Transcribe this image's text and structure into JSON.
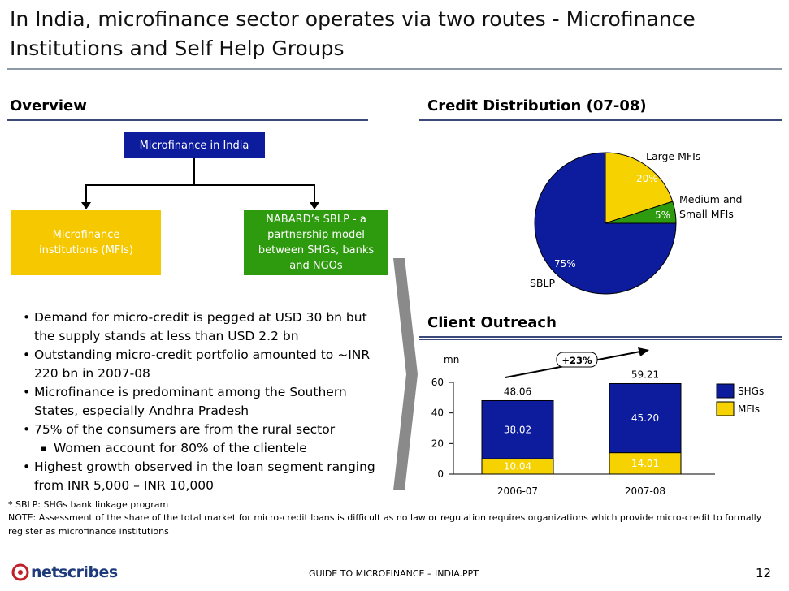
{
  "title": "In India, microfinance sector operates via two routes - Microfinance Institutions and Self Help Groups",
  "overview": {
    "heading": "Overview",
    "top_box": "Microfinance in India",
    "left_box": "Microfinance institutions (MFIs)",
    "right_box": "NABARD’s SBLP - a partnership model between SHGs, banks and NGOs",
    "bullets": [
      "Demand for micro-credit is pegged at USD 30 bn but the supply stands at less than USD 2.2 bn",
      "Outstanding micro-credit portfolio amounted to ~INR 220 bn in 2007-08",
      "Microfinance is predominant among the Southern States, especially Andhra Pradesh",
      "75% of the consumers are from the rural sector",
      "Women account for 80% of the clientele",
      "Highest growth observed in the loan segment ranging from INR 5,000 – INR 10,000"
    ],
    "bullet_marks": [
      "•",
      "▪"
    ]
  },
  "credit": {
    "heading": "Credit Distribution (07-08)"
  },
  "outreach": {
    "heading": "Client Outreach",
    "growth_label": "+23%"
  },
  "chart_data": [
    {
      "type": "pie",
      "title": "Credit Distribution (07-08)",
      "slices": [
        {
          "label": "SBLP",
          "value": 75,
          "display": "75%",
          "color": "#0c1c9c"
        },
        {
          "label": "Large MFIs",
          "value": 20,
          "display": "20%",
          "color": "#f5d200"
        },
        {
          "label": "Medium and Small MFIs",
          "value": 5,
          "display": "5%",
          "color": "#2e9a0e"
        }
      ],
      "label_lines": {
        "Medium and Small MFIs": [
          "Medium and",
          "Small MFIs"
        ]
      }
    },
    {
      "type": "bar",
      "stacked": true,
      "title": "Client Outreach",
      "ylabel": "mn",
      "ylim": [
        0,
        60
      ],
      "yticks": [
        0,
        20,
        40,
        60
      ],
      "categories": [
        "2006-07",
        "2007-08"
      ],
      "series": [
        {
          "name": "SHGs",
          "values": [
            38.02,
            45.2
          ],
          "labels": [
            "38.02",
            "45.20"
          ],
          "color": "#0c1c9c"
        },
        {
          "name": "MFIs",
          "values": [
            10.04,
            14.01
          ],
          "labels": [
            "10.04",
            "14.01"
          ],
          "color": "#f5d200"
        }
      ],
      "totals": [
        "48.06",
        "59.21"
      ],
      "annotation": "+23%"
    }
  ],
  "footnotes": {
    "sblp": "* SBLP: SHGs bank linkage program",
    "note": "NOTE: Assessment of the share of the total market for micro-credit loans is difficult as no law or regulation requires organizations which provide micro-credit to formally register as microfinance institutions"
  },
  "footer": {
    "logo": "netscribes",
    "doc_title": "GUIDE TO MICROFINANCE – INDIA.PPT",
    "page": "12"
  },
  "colors": {
    "navy": "#0c1c9c",
    "yellow": "#f5d200",
    "green": "#2e9a0e",
    "rule": "#3b4a7a"
  }
}
